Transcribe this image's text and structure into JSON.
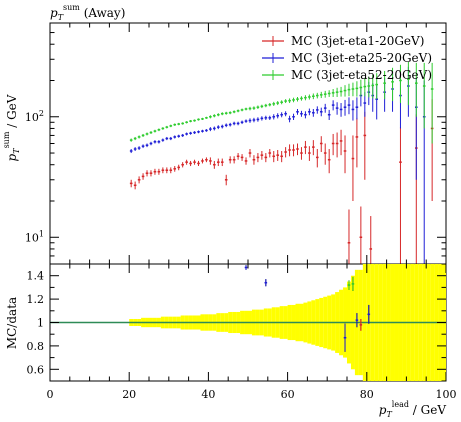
{
  "chart_data": [
    {
      "type": "scatter",
      "title": "p_T^sum (Away)",
      "title_parts": {
        "symbol": "p",
        "sub": "T",
        "sup": "sum",
        "rest": " (Away)"
      },
      "ylabel_parts": {
        "symbol": "p",
        "sub": "T",
        "sup": "sum",
        "rest": " / GeV"
      },
      "yscale": "log",
      "ylim": [
        6,
        600
      ],
      "xlim": [
        0,
        100
      ],
      "major_ticks": [
        {
          "value": 10,
          "mantissa": "10",
          "exponent": "1"
        },
        {
          "value": 100,
          "mantissa": "10",
          "exponent": "2"
        }
      ],
      "legend_position": "top-right",
      "series": [
        {
          "name": "MC (3jet-eta1-20GeV)",
          "color": "#d62728",
          "x": [
            20.5,
            21.5,
            22.5,
            23.5,
            24.5,
            25.5,
            26.5,
            27.5,
            28.5,
            29.5,
            30.5,
            31.5,
            32.5,
            33.5,
            34.5,
            35.5,
            36.5,
            37.5,
            38.5,
            39.5,
            40.5,
            41.5,
            42.5,
            43.5,
            44.5,
            45.5,
            46.5,
            47.5,
            48.5,
            49.5,
            50.5,
            51.5,
            52.5,
            53.5,
            54.5,
            55.5,
            56.5,
            57.5,
            58.5,
            59.5,
            60.5,
            61.5,
            62.5,
            63.5,
            64.5,
            65.5,
            66.5,
            67.5,
            68.5,
            69.5,
            70.5,
            71.5,
            72.5,
            73.5,
            74.5,
            75.5,
            76.5,
            77.5,
            78.5,
            79.5,
            81.0,
            88.5,
            92.5,
            96.5
          ],
          "y": [
            28,
            27,
            30,
            32,
            34,
            34,
            35,
            35,
            36,
            36,
            36,
            37,
            38,
            40,
            42,
            41,
            42,
            41,
            43,
            44,
            43,
            40,
            42,
            42,
            30,
            44,
            44,
            47,
            46,
            43,
            50,
            44,
            46,
            48,
            46,
            50,
            47,
            48,
            47,
            51,
            53,
            53,
            54,
            50,
            56,
            50,
            56,
            46,
            60,
            50,
            44,
            60,
            60,
            63,
            52,
            9,
            45,
            68,
            10,
            70,
            8,
            42,
            55,
            80
          ],
          "yerr": [
            2,
            2,
            2,
            2,
            2,
            2,
            2,
            2,
            2,
            2,
            2,
            2,
            2,
            2,
            2,
            2,
            2,
            2,
            2,
            2,
            3,
            3,
            3,
            3,
            3,
            3,
            3,
            3,
            3,
            3,
            4,
            4,
            4,
            4,
            4,
            4,
            5,
            5,
            5,
            5,
            6,
            6,
            6,
            6,
            7,
            7,
            8,
            8,
            9,
            10,
            10,
            12,
            14,
            15,
            18,
            8,
            25,
            30,
            8,
            40,
            7,
            40,
            50,
            60
          ]
        },
        {
          "name": "MC (3jet-eta25-20GeV)",
          "color": "#1f1fd6",
          "x": [
            20.5,
            21.5,
            22.5,
            23.5,
            24.5,
            25.5,
            26.5,
            27.5,
            28.5,
            29.5,
            30.5,
            31.5,
            32.5,
            33.5,
            34.5,
            35.5,
            36.5,
            37.5,
            38.5,
            39.5,
            40.5,
            41.5,
            42.5,
            43.5,
            44.5,
            45.5,
            46.5,
            47.5,
            48.5,
            49.5,
            50.5,
            51.5,
            52.5,
            53.5,
            54.5,
            55.5,
            56.5,
            57.5,
            58.5,
            59.5,
            60.5,
            61.5,
            62.5,
            63.5,
            64.5,
            65.5,
            66.5,
            67.5,
            68.5,
            69.5,
            70.5,
            71.5,
            72.5,
            73.5,
            74.5,
            75.5,
            76.5,
            77.5,
            78.5,
            79.5,
            80.5,
            81.5,
            82.5,
            84.5,
            86.5,
            88.5,
            90.5,
            92.5,
            94.5
          ],
          "y": [
            52,
            54,
            55,
            57,
            58,
            60,
            62,
            62,
            64,
            66,
            66,
            68,
            69,
            70,
            72,
            73,
            74,
            75,
            76,
            77,
            79,
            80,
            82,
            83,
            85,
            86,
            88,
            88,
            90,
            92,
            93,
            94,
            95,
            97,
            98,
            98,
            100,
            102,
            104,
            106,
            96,
            100,
            110,
            106,
            104,
            110,
            108,
            114,
            110,
            118,
            104,
            125,
            118,
            115,
            120,
            125,
            115,
            120,
            150,
            130,
            160,
            150,
            140,
            160,
            170,
            150,
            180,
            120,
            100
          ],
          "yerr": [
            2,
            2,
            2,
            2,
            2,
            2,
            2,
            2,
            2,
            2,
            2,
            2,
            2,
            2,
            2,
            2,
            2,
            2,
            2,
            2,
            3,
            3,
            3,
            3,
            3,
            3,
            3,
            3,
            3,
            3,
            4,
            4,
            4,
            4,
            4,
            4,
            5,
            5,
            5,
            5,
            6,
            6,
            6,
            6,
            7,
            7,
            8,
            8,
            9,
            10,
            10,
            12,
            14,
            15,
            18,
            20,
            22,
            25,
            28,
            30,
            35,
            40,
            45,
            50,
            60,
            70,
            80,
            90,
            100
          ]
        },
        {
          "name": "MC (3jet-eta52-20GeV)",
          "color": "#2ecc2e",
          "x": [
            20.5,
            21.5,
            22.5,
            23.5,
            24.5,
            25.5,
            26.5,
            27.5,
            28.5,
            29.5,
            30.5,
            31.5,
            32.5,
            33.5,
            34.5,
            35.5,
            36.5,
            37.5,
            38.5,
            39.5,
            40.5,
            41.5,
            42.5,
            43.5,
            44.5,
            45.5,
            46.5,
            47.5,
            48.5,
            49.5,
            50.5,
            51.5,
            52.5,
            53.5,
            54.5,
            55.5,
            56.5,
            57.5,
            58.5,
            59.5,
            60.5,
            61.5,
            62.5,
            63.5,
            64.5,
            65.5,
            66.5,
            67.5,
            68.5,
            69.5,
            70.5,
            71.5,
            72.5,
            73.5,
            74.5,
            75.5,
            76.5,
            77.5,
            78.5,
            79.5,
            80.5,
            81.5,
            82.5,
            84.5,
            86.5,
            88.5,
            90.5,
            92.5,
            94.5,
            96.5
          ],
          "y": [
            64,
            66,
            68,
            70,
            72,
            74,
            76,
            78,
            80,
            82,
            84,
            86,
            87,
            88,
            90,
            92,
            93,
            95,
            96,
            98,
            100,
            102,
            104,
            106,
            107,
            108,
            110,
            112,
            114,
            116,
            117,
            118,
            120,
            122,
            124,
            126,
            128,
            130,
            132,
            135,
            136,
            138,
            140,
            142,
            144,
            146,
            148,
            150,
            152,
            154,
            156,
            158,
            160,
            162,
            165,
            168,
            170,
            172,
            175,
            178,
            180,
            182,
            185,
            190,
            195,
            200,
            205,
            190,
            180,
            170
          ],
          "yerr": [
            2,
            2,
            2,
            2,
            2,
            2,
            2,
            2,
            2,
            2,
            2,
            2,
            2,
            2,
            2,
            2,
            2,
            2,
            2,
            2,
            3,
            3,
            3,
            3,
            3,
            3,
            3,
            3,
            3,
            3,
            4,
            4,
            4,
            4,
            4,
            4,
            5,
            5,
            5,
            5,
            6,
            6,
            6,
            6,
            7,
            7,
            8,
            8,
            9,
            10,
            10,
            12,
            14,
            15,
            18,
            20,
            22,
            25,
            28,
            30,
            35,
            40,
            45,
            50,
            60,
            70,
            80,
            90,
            100,
            110
          ]
        }
      ]
    },
    {
      "type": "scatter",
      "ylabel": "MC/data",
      "xlabel_parts": {
        "symbol": "p",
        "sub": "T",
        "sup": "lead",
        "rest": " / GeV"
      },
      "xlim": [
        0,
        100
      ],
      "ylim": [
        0.5,
        1.5
      ],
      "yticks": [
        "0.6",
        "0.8",
        "1",
        "1.2",
        "1.4"
      ],
      "xticks": [
        "0",
        "20",
        "40",
        "60",
        "80",
        "100"
      ],
      "reference_line": 1,
      "band": {
        "color": "#ffff00",
        "x": [
          20.5,
          21.5,
          22.5,
          23.5,
          24.5,
          25.5,
          26.5,
          27.5,
          28.5,
          29.5,
          30.5,
          31.5,
          32.5,
          33.5,
          34.5,
          35.5,
          36.5,
          37.5,
          38.5,
          39.5,
          40.5,
          41.5,
          42.5,
          43.5,
          44.5,
          45.5,
          46.5,
          47.5,
          48.5,
          49.5,
          50.5,
          51.5,
          52.5,
          53.5,
          54.5,
          55.5,
          56.5,
          57.5,
          58.5,
          59.5,
          60.5,
          61.5,
          62.5,
          63.5,
          64.5,
          65.5,
          66.5,
          67.5,
          68.5,
          69.5,
          70.5,
          71.5,
          72.5,
          73.5,
          74.5,
          75.5,
          76.5,
          77.5,
          78.5,
          79.5,
          80.5,
          81.5,
          82.5,
          83.5,
          84.5,
          85.5,
          86.5,
          87.5,
          88.5,
          89.5,
          90.5,
          91.5,
          92.5,
          93.5,
          94.5,
          95.5,
          96.5,
          97.5,
          98.5,
          99.5
        ],
        "half_width": [
          0.03,
          0.03,
          0.03,
          0.04,
          0.04,
          0.04,
          0.04,
          0.04,
          0.05,
          0.05,
          0.05,
          0.05,
          0.05,
          0.06,
          0.06,
          0.06,
          0.06,
          0.06,
          0.07,
          0.07,
          0.07,
          0.07,
          0.08,
          0.08,
          0.08,
          0.09,
          0.09,
          0.09,
          0.1,
          0.1,
          0.1,
          0.11,
          0.11,
          0.11,
          0.12,
          0.12,
          0.13,
          0.13,
          0.14,
          0.14,
          0.15,
          0.15,
          0.16,
          0.16,
          0.17,
          0.18,
          0.19,
          0.2,
          0.21,
          0.22,
          0.23,
          0.24,
          0.26,
          0.28,
          0.3,
          0.35,
          0.4,
          0.45,
          0.45,
          0.5,
          0.5,
          0.5,
          0.5,
          0.5,
          0.5,
          0.5,
          0.5,
          0.5,
          0.5,
          0.5,
          0.5,
          0.5,
          0.5,
          0.5,
          0.5,
          0.5,
          0.5,
          0.5,
          0.5,
          0.5
        ]
      },
      "series": [
        {
          "name": "MC (3jet-eta1-20GeV)",
          "color": "#d62728",
          "points": [
            {
              "x": 78.5,
              "y": 0.98,
              "yerr": 0.05
            }
          ]
        },
        {
          "name": "MC (3jet-eta25-20GeV)",
          "color": "#1f1fd6",
          "points": [
            {
              "x": 49.5,
              "y": 1.47,
              "yerr": 0.02
            },
            {
              "x": 54.5,
              "y": 1.34,
              "yerr": 0.03
            },
            {
              "x": 74.5,
              "y": 0.87,
              "yerr": 0.12
            },
            {
              "x": 77.5,
              "y": 1.02,
              "yerr": 0.06
            },
            {
              "x": 80.5,
              "y": 1.07,
              "yerr": 0.08
            }
          ]
        },
        {
          "name": "MC (3jet-eta52-20GeV)",
          "color": "#2ecc2e",
          "points": [
            {
              "x": 76.5,
              "y": 1.33,
              "yerr": 0.06
            },
            {
              "x": 75.5,
              "y": 1.32,
              "yerr": 0.04
            }
          ]
        }
      ]
    }
  ]
}
